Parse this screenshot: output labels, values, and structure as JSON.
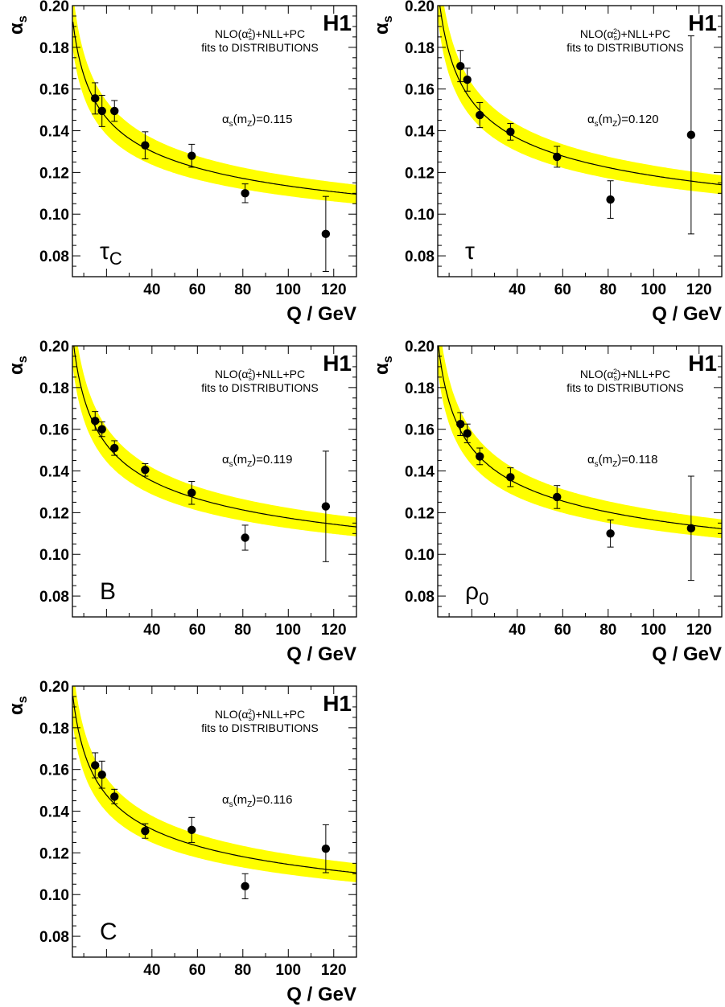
{
  "figure": {
    "x_axis_title": "Q / GeV",
    "y_axis_title": "α",
    "y_axis_title_sub": "s",
    "experiment": "H1",
    "fit_note_line1": "NLO(α",
    "fit_note_line1_sub": "s",
    "fit_note_line1_sup": "2",
    "fit_note_line1_tail": ")+NLL+PC",
    "fit_note_line2": "fits to DISTRIBUTIONS",
    "alpha_prefix": "α",
    "alpha_prefix_sub": "s",
    "alpha_arg_open": "(m",
    "alpha_arg_sub": "Z",
    "alpha_arg_close": ")=",
    "band_color": "#ffff00",
    "curve_color": "#000000",
    "marker_color": "#000000"
  },
  "chart_data": [
    {
      "type": "scatter",
      "variable": "τ",
      "variable_sub": "C",
      "alpha_mz": "0.115",
      "xlim": [
        5,
        130
      ],
      "ylim": [
        0.07,
        0.2
      ],
      "xticks": [
        "40",
        "60",
        "80",
        "100",
        "120"
      ],
      "yticks": [
        "0.08",
        "0.10",
        "0.12",
        "0.14",
        "0.16",
        "0.18",
        "0.20"
      ],
      "fit": {
        "alpha_mz": 0.115,
        "band_lo": 0.11,
        "band_hi": 0.12
      },
      "points": [
        {
          "x": 15,
          "y": 0.1555,
          "err_lo": 0.0075,
          "err_hi": 0.0075
        },
        {
          "x": 18,
          "y": 0.1495,
          "err_lo": 0.0075,
          "err_hi": 0.0075
        },
        {
          "x": 23.5,
          "y": 0.1495,
          "err_lo": 0.005,
          "err_hi": 0.005
        },
        {
          "x": 37,
          "y": 0.133,
          "err_lo": 0.0065,
          "err_hi": 0.0065
        },
        {
          "x": 57.5,
          "y": 0.128,
          "err_lo": 0.0055,
          "err_hi": 0.0055
        },
        {
          "x": 81,
          "y": 0.11,
          "err_lo": 0.0045,
          "err_hi": 0.0045
        },
        {
          "x": 116.5,
          "y": 0.0905,
          "err_lo": 0.018,
          "err_hi": 0.018
        }
      ]
    },
    {
      "type": "scatter",
      "variable": "τ",
      "variable_sub": "",
      "alpha_mz": "0.120",
      "xlim": [
        5,
        130
      ],
      "ylim": [
        0.07,
        0.2
      ],
      "xticks": [
        "40",
        "60",
        "80",
        "100",
        "120"
      ],
      "yticks": [
        "0.08",
        "0.10",
        "0.12",
        "0.14",
        "0.16",
        "0.18",
        "0.20"
      ],
      "fit": {
        "alpha_mz": 0.12,
        "band_lo": 0.115,
        "band_hi": 0.125
      },
      "points": [
        {
          "x": 15,
          "y": 0.171,
          "err_lo": 0.0075,
          "err_hi": 0.0075
        },
        {
          "x": 18,
          "y": 0.1645,
          "err_lo": 0.0055,
          "err_hi": 0.0055
        },
        {
          "x": 23.5,
          "y": 0.1475,
          "err_lo": 0.006,
          "err_hi": 0.006
        },
        {
          "x": 37,
          "y": 0.1395,
          "err_lo": 0.004,
          "err_hi": 0.004
        },
        {
          "x": 57.5,
          "y": 0.1275,
          "err_lo": 0.005,
          "err_hi": 0.005
        },
        {
          "x": 81,
          "y": 0.107,
          "err_lo": 0.009,
          "err_hi": 0.009
        },
        {
          "x": 116.5,
          "y": 0.138,
          "err_lo": 0.0475,
          "err_hi": 0.0475
        }
      ]
    },
    {
      "type": "scatter",
      "variable": "B",
      "variable_sub": "",
      "alpha_mz": "0.119",
      "xlim": [
        5,
        130
      ],
      "ylim": [
        0.07,
        0.2
      ],
      "xticks": [
        "40",
        "60",
        "80",
        "100",
        "120"
      ],
      "yticks": [
        "0.08",
        "0.10",
        "0.12",
        "0.14",
        "0.16",
        "0.18",
        "0.20"
      ],
      "fit": {
        "alpha_mz": 0.119,
        "band_lo": 0.114,
        "band_hi": 0.124
      },
      "points": [
        {
          "x": 15,
          "y": 0.164,
          "err_lo": 0.0045,
          "err_hi": 0.0045
        },
        {
          "x": 18,
          "y": 0.16,
          "err_lo": 0.0035,
          "err_hi": 0.0035
        },
        {
          "x": 23.5,
          "y": 0.151,
          "err_lo": 0.0035,
          "err_hi": 0.0035
        },
        {
          "x": 37,
          "y": 0.1405,
          "err_lo": 0.003,
          "err_hi": 0.003
        },
        {
          "x": 57.5,
          "y": 0.1295,
          "err_lo": 0.0055,
          "err_hi": 0.0055
        },
        {
          "x": 81,
          "y": 0.108,
          "err_lo": 0.006,
          "err_hi": 0.006
        },
        {
          "x": 116.5,
          "y": 0.123,
          "err_lo": 0.0265,
          "err_hi": 0.0265
        }
      ]
    },
    {
      "type": "scatter",
      "variable": "ρ",
      "variable_sub": "0",
      "alpha_mz": "0.118",
      "xlim": [
        5,
        130
      ],
      "ylim": [
        0.07,
        0.2
      ],
      "xticks": [
        "40",
        "60",
        "80",
        "100",
        "120"
      ],
      "yticks": [
        "0.08",
        "0.10",
        "0.12",
        "0.14",
        "0.16",
        "0.18",
        "0.20"
      ],
      "fit": {
        "alpha_mz": 0.118,
        "band_lo": 0.113,
        "band_hi": 0.123
      },
      "points": [
        {
          "x": 15,
          "y": 0.1625,
          "err_lo": 0.0055,
          "err_hi": 0.0055
        },
        {
          "x": 18,
          "y": 0.158,
          "err_lo": 0.0045,
          "err_hi": 0.0045
        },
        {
          "x": 23.5,
          "y": 0.147,
          "err_lo": 0.004,
          "err_hi": 0.004
        },
        {
          "x": 37,
          "y": 0.137,
          "err_lo": 0.0045,
          "err_hi": 0.0045
        },
        {
          "x": 57.5,
          "y": 0.1275,
          "err_lo": 0.0055,
          "err_hi": 0.0055
        },
        {
          "x": 81,
          "y": 0.11,
          "err_lo": 0.0065,
          "err_hi": 0.0065
        },
        {
          "x": 116.5,
          "y": 0.1125,
          "err_lo": 0.025,
          "err_hi": 0.025
        }
      ]
    },
    {
      "type": "scatter",
      "variable": "C",
      "variable_sub": "",
      "alpha_mz": "0.116",
      "xlim": [
        5,
        130
      ],
      "ylim": [
        0.07,
        0.2
      ],
      "xticks": [
        "40",
        "60",
        "80",
        "100",
        "120"
      ],
      "yticks": [
        "0.08",
        "0.10",
        "0.12",
        "0.14",
        "0.16",
        "0.18",
        "0.20"
      ],
      "fit": {
        "alpha_mz": 0.116,
        "band_lo": 0.111,
        "band_hi": 0.121
      },
      "points": [
        {
          "x": 15,
          "y": 0.162,
          "err_lo": 0.006,
          "err_hi": 0.006
        },
        {
          "x": 18,
          "y": 0.1575,
          "err_lo": 0.0065,
          "err_hi": 0.0065
        },
        {
          "x": 23.5,
          "y": 0.147,
          "err_lo": 0.0035,
          "err_hi": 0.0035
        },
        {
          "x": 37,
          "y": 0.1305,
          "err_lo": 0.0035,
          "err_hi": 0.0035
        },
        {
          "x": 57.5,
          "y": 0.131,
          "err_lo": 0.006,
          "err_hi": 0.006
        },
        {
          "x": 81,
          "y": 0.104,
          "err_lo": 0.006,
          "err_hi": 0.006
        },
        {
          "x": 116.5,
          "y": 0.122,
          "err_lo": 0.0115,
          "err_hi": 0.0115
        }
      ]
    }
  ]
}
